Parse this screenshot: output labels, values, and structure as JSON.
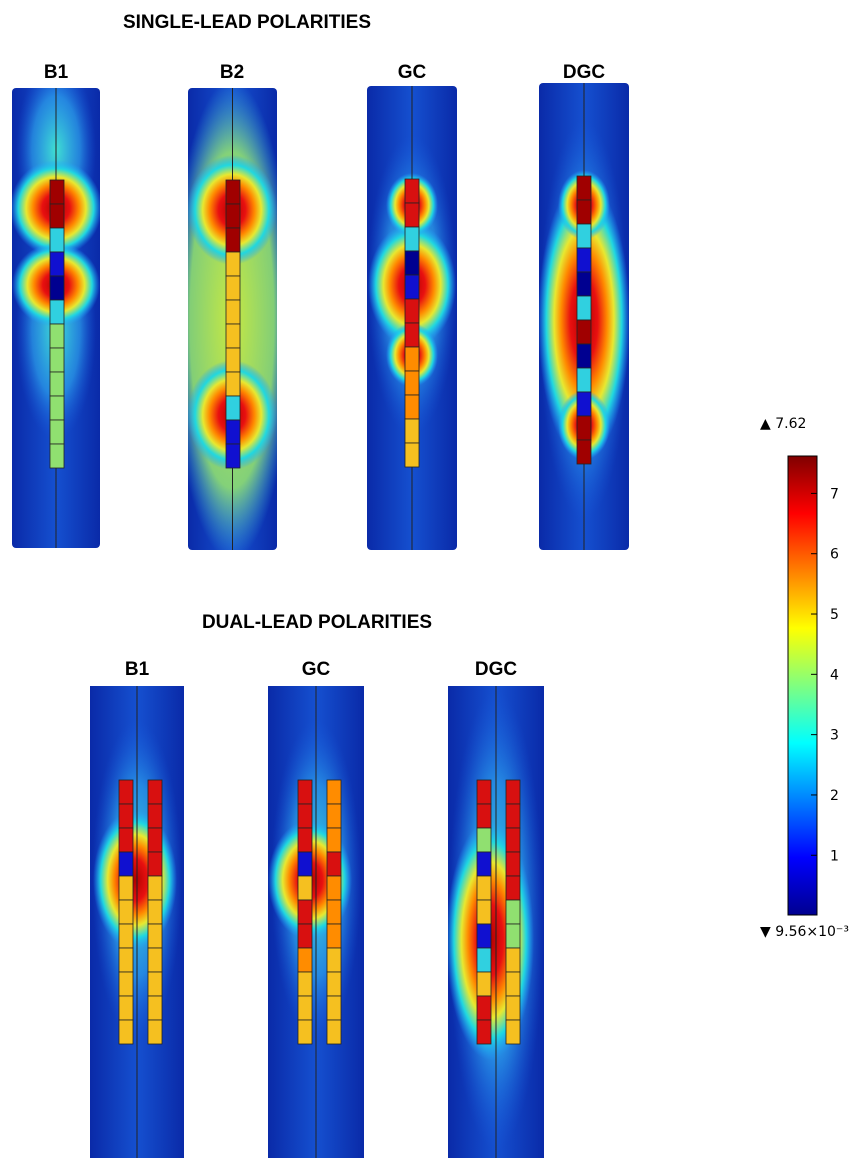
{
  "single_lead": {
    "title": "SINGLE-LEAD POLARITIES",
    "labels": [
      "B1",
      "B2",
      "GC",
      "DGC"
    ]
  },
  "dual_lead": {
    "title": "DUAL-LEAD POLARITIES",
    "labels": [
      "B1",
      "GC",
      "DGC"
    ]
  },
  "colorbar": {
    "max": {
      "value": 7.62,
      "label": "7.62"
    },
    "min": {
      "value": 0.00956,
      "label": "9.56×10⁻³"
    },
    "ticks": [
      1,
      2,
      3,
      4,
      5,
      6,
      7
    ]
  }
}
